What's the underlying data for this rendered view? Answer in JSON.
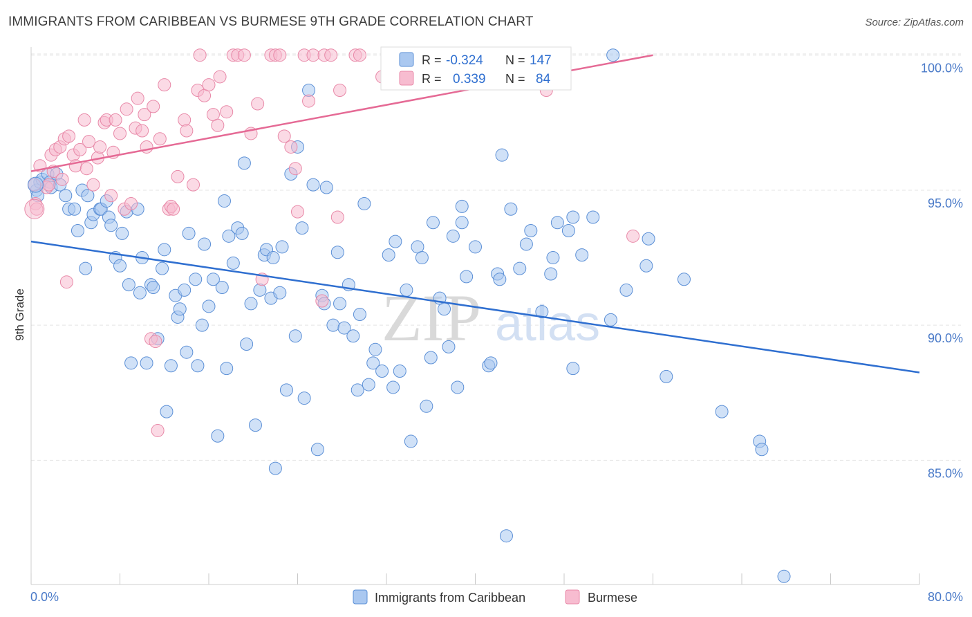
{
  "header": {
    "title": "IMMIGRANTS FROM CARIBBEAN VS BURMESE 9TH GRADE CORRELATION CHART",
    "source": "Source: ZipAtlas.com"
  },
  "watermark": {
    "zip": "ZIP",
    "atlas": "atlas"
  },
  "legend_top": {
    "rows": [
      {
        "r_label": "R =",
        "r_value": "-0.324",
        "n_label": "N =",
        "n_value": "147",
        "color": "#aac8f0"
      },
      {
        "r_label": "R =",
        "r_value": "0.339",
        "n_label": "N =",
        "n_value": "84",
        "color": "#f7bcd0"
      }
    ]
  },
  "legend_bottom": {
    "items": [
      {
        "label": "Immigrants from Caribbean",
        "color": "#aac8f0"
      },
      {
        "label": "Burmese",
        "color": "#f7bcd0"
      }
    ]
  },
  "chart_data": {
    "type": "scatter",
    "title": "IMMIGRANTS FROM CARIBBEAN VS BURMESE 9TH GRADE CORRELATION CHART",
    "xlabel": "",
    "ylabel": "9th Grade",
    "xlim": [
      0,
      80
    ],
    "ylim": [
      80.4,
      100.3
    ],
    "x_tick_labels": [
      "0.0%",
      "80.0%"
    ],
    "y_ticks": [
      85,
      90,
      95,
      100
    ],
    "y_tick_labels": [
      "85.0%",
      "90.0%",
      "95.0%",
      "100.0%"
    ],
    "grid": true,
    "legend": "top-center",
    "series": [
      {
        "name": "Immigrants from Caribbean",
        "color": "#aac8f0",
        "stroke": "#5b8fd6",
        "trend": {
          "x": [
            0,
            80
          ],
          "y": [
            93.1,
            88.25
          ],
          "color": "#2f6fd0"
        },
        "points": [
          [
            0.5,
            95.0
          ],
          [
            0.6,
            94.8
          ],
          [
            0.8,
            95.3
          ],
          [
            1.0,
            95.4
          ],
          [
            1.5,
            95.6
          ],
          [
            1.7,
            95.3
          ],
          [
            1.8,
            95.1
          ],
          [
            2.3,
            95.6
          ],
          [
            2.6,
            95.2
          ],
          [
            3.1,
            94.8
          ],
          [
            3.4,
            94.3
          ],
          [
            3.9,
            94.3
          ],
          [
            4.2,
            93.5
          ],
          [
            4.6,
            95.0
          ],
          [
            4.9,
            92.1
          ],
          [
            5.1,
            94.8
          ],
          [
            5.4,
            93.8
          ],
          [
            5.6,
            94.1
          ],
          [
            6.2,
            94.3
          ],
          [
            6.3,
            94.3
          ],
          [
            6.8,
            94.6
          ],
          [
            7.0,
            94.0
          ],
          [
            7.2,
            93.7
          ],
          [
            7.6,
            92.5
          ],
          [
            8.0,
            92.2
          ],
          [
            8.2,
            93.4
          ],
          [
            8.6,
            94.2
          ],
          [
            8.8,
            91.5
          ],
          [
            9.0,
            88.6
          ],
          [
            9.6,
            94.3
          ],
          [
            9.8,
            91.2
          ],
          [
            10.0,
            92.5
          ],
          [
            10.4,
            88.6
          ],
          [
            10.8,
            91.5
          ],
          [
            11.0,
            91.4
          ],
          [
            11.4,
            89.5
          ],
          [
            11.8,
            92.1
          ],
          [
            12.0,
            92.8
          ],
          [
            12.2,
            86.8
          ],
          [
            12.6,
            88.5
          ],
          [
            13.0,
            91.1
          ],
          [
            13.2,
            90.3
          ],
          [
            13.4,
            90.6
          ],
          [
            13.8,
            91.3
          ],
          [
            14.0,
            89.0
          ],
          [
            14.2,
            93.4
          ],
          [
            14.8,
            91.7
          ],
          [
            15.0,
            88.5
          ],
          [
            15.4,
            90.0
          ],
          [
            15.6,
            93.0
          ],
          [
            16.0,
            90.7
          ],
          [
            16.4,
            91.7
          ],
          [
            16.8,
            85.9
          ],
          [
            17.2,
            91.4
          ],
          [
            17.4,
            94.6
          ],
          [
            17.6,
            88.4
          ],
          [
            17.8,
            93.3
          ],
          [
            18.2,
            92.3
          ],
          [
            18.6,
            93.6
          ],
          [
            19.0,
            93.4
          ],
          [
            19.2,
            96.0
          ],
          [
            19.4,
            89.3
          ],
          [
            19.8,
            90.8
          ],
          [
            20.2,
            86.3
          ],
          [
            20.6,
            91.3
          ],
          [
            21.0,
            92.6
          ],
          [
            21.2,
            92.8
          ],
          [
            21.6,
            91.0
          ],
          [
            21.8,
            92.5
          ],
          [
            22.0,
            84.7
          ],
          [
            22.4,
            91.2
          ],
          [
            22.6,
            92.9
          ],
          [
            23.0,
            87.6
          ],
          [
            23.4,
            95.6
          ],
          [
            23.8,
            89.6
          ],
          [
            24.0,
            96.6
          ],
          [
            24.4,
            93.6
          ],
          [
            24.6,
            87.3
          ],
          [
            25.0,
            98.7
          ],
          [
            25.4,
            95.2
          ],
          [
            25.8,
            85.4
          ],
          [
            26.2,
            91.1
          ],
          [
            26.4,
            90.8
          ],
          [
            26.6,
            95.1
          ],
          [
            27.2,
            90.0
          ],
          [
            27.6,
            92.7
          ],
          [
            27.8,
            90.8
          ],
          [
            28.2,
            89.9
          ],
          [
            28.6,
            91.5
          ],
          [
            29.0,
            89.6
          ],
          [
            29.4,
            87.6
          ],
          [
            29.6,
            90.4
          ],
          [
            30.0,
            94.5
          ],
          [
            30.4,
            87.8
          ],
          [
            30.8,
            88.6
          ],
          [
            31.0,
            89.1
          ],
          [
            31.6,
            88.3
          ],
          [
            32.2,
            92.6
          ],
          [
            32.6,
            87.7
          ],
          [
            32.8,
            93.1
          ],
          [
            33.2,
            88.3
          ],
          [
            33.8,
            91.3
          ],
          [
            34.2,
            85.7
          ],
          [
            34.8,
            92.9
          ],
          [
            35.2,
            92.5
          ],
          [
            35.6,
            87.0
          ],
          [
            36.0,
            88.8
          ],
          [
            36.2,
            93.8
          ],
          [
            36.8,
            91.0
          ],
          [
            37.2,
            90.6
          ],
          [
            37.6,
            89.2
          ],
          [
            38.0,
            93.3
          ],
          [
            38.4,
            87.7
          ],
          [
            38.8,
            93.8
          ],
          [
            38.8,
            94.4
          ],
          [
            39.2,
            91.8
          ],
          [
            40.0,
            92.9
          ],
          [
            41.2,
            88.5
          ],
          [
            41.4,
            88.6
          ],
          [
            42.0,
            91.9
          ],
          [
            42.2,
            91.7
          ],
          [
            42.4,
            96.3
          ],
          [
            42.8,
            82.2
          ],
          [
            43.2,
            94.3
          ],
          [
            44.0,
            92.1
          ],
          [
            44.6,
            93.0
          ],
          [
            45.0,
            93.5
          ],
          [
            46.0,
            90.5
          ],
          [
            46.8,
            91.9
          ],
          [
            47.0,
            92.5
          ],
          [
            47.4,
            93.8
          ],
          [
            48.4,
            93.5
          ],
          [
            48.8,
            94.0
          ],
          [
            48.8,
            88.4
          ],
          [
            49.6,
            92.6
          ],
          [
            50.6,
            94.0
          ],
          [
            52.2,
            90.2
          ],
          [
            52.4,
            100.0
          ],
          [
            53.6,
            91.3
          ],
          [
            55.4,
            92.2
          ],
          [
            55.6,
            93.2
          ],
          [
            57.2,
            88.1
          ],
          [
            58.8,
            91.7
          ],
          [
            62.2,
            86.8
          ],
          [
            65.6,
            85.7
          ],
          [
            65.8,
            85.4
          ],
          [
            67.8,
            80.7
          ]
        ]
      },
      {
        "name": "Burmese",
        "color": "#f7bcd0",
        "stroke": "#e889a8",
        "trend": {
          "x": [
            0,
            56
          ],
          "y": [
            95.7,
            100.0
          ],
          "color": "#e56a95"
        },
        "points": [
          [
            0.3,
            95.2
          ],
          [
            0.4,
            94.5
          ],
          [
            0.5,
            94.3
          ],
          [
            0.8,
            95.9
          ],
          [
            1.4,
            95.1
          ],
          [
            1.6,
            95.2
          ],
          [
            1.8,
            96.3
          ],
          [
            2.0,
            95.7
          ],
          [
            2.2,
            96.5
          ],
          [
            2.6,
            96.6
          ],
          [
            2.8,
            95.4
          ],
          [
            3.0,
            96.9
          ],
          [
            3.2,
            91.6
          ],
          [
            3.4,
            97.0
          ],
          [
            3.8,
            96.3
          ],
          [
            4.0,
            95.9
          ],
          [
            4.4,
            96.5
          ],
          [
            4.8,
            97.6
          ],
          [
            5.0,
            95.8
          ],
          [
            5.2,
            96.8
          ],
          [
            5.6,
            95.2
          ],
          [
            6.0,
            96.2
          ],
          [
            6.2,
            96.6
          ],
          [
            6.6,
            97.5
          ],
          [
            6.8,
            97.6
          ],
          [
            7.2,
            94.8
          ],
          [
            7.4,
            96.4
          ],
          [
            7.6,
            97.6
          ],
          [
            8.0,
            97.1
          ],
          [
            8.4,
            94.3
          ],
          [
            8.6,
            98.0
          ],
          [
            9.0,
            94.5
          ],
          [
            9.4,
            97.3
          ],
          [
            9.6,
            98.4
          ],
          [
            10.0,
            97.2
          ],
          [
            10.2,
            97.8
          ],
          [
            10.4,
            96.6
          ],
          [
            10.8,
            89.5
          ],
          [
            11.0,
            98.1
          ],
          [
            11.2,
            89.4
          ],
          [
            11.4,
            86.1
          ],
          [
            11.6,
            96.9
          ],
          [
            12.0,
            98.9
          ],
          [
            12.4,
            94.3
          ],
          [
            12.6,
            94.4
          ],
          [
            12.8,
            94.3
          ],
          [
            13.2,
            95.5
          ],
          [
            13.8,
            97.6
          ],
          [
            14.0,
            97.2
          ],
          [
            14.6,
            95.2
          ],
          [
            15.0,
            98.7
          ],
          [
            15.2,
            100.0
          ],
          [
            15.6,
            98.5
          ],
          [
            16.0,
            98.9
          ],
          [
            16.4,
            97.8
          ],
          [
            16.8,
            97.4
          ],
          [
            17.0,
            99.2
          ],
          [
            17.6,
            97.9
          ],
          [
            18.2,
            100.0
          ],
          [
            18.6,
            100.0
          ],
          [
            19.2,
            100.0
          ],
          [
            19.8,
            97.1
          ],
          [
            20.4,
            98.2
          ],
          [
            20.8,
            91.7
          ],
          [
            21.6,
            100.0
          ],
          [
            22.0,
            100.0
          ],
          [
            22.4,
            100.0
          ],
          [
            22.8,
            97.0
          ],
          [
            23.4,
            96.6
          ],
          [
            23.8,
            95.8
          ],
          [
            24.0,
            94.2
          ],
          [
            24.6,
            100.0
          ],
          [
            25.0,
            98.3
          ],
          [
            25.4,
            100.0
          ],
          [
            26.2,
            90.9
          ],
          [
            26.4,
            100.0
          ],
          [
            27.0,
            100.0
          ],
          [
            27.6,
            94.0
          ],
          [
            27.8,
            98.7
          ],
          [
            29.2,
            100.0
          ],
          [
            29.6,
            100.0
          ],
          [
            31.6,
            99.2
          ],
          [
            37.8,
            100.0
          ],
          [
            46.4,
            98.7
          ],
          [
            54.2,
            93.3
          ]
        ]
      }
    ]
  }
}
